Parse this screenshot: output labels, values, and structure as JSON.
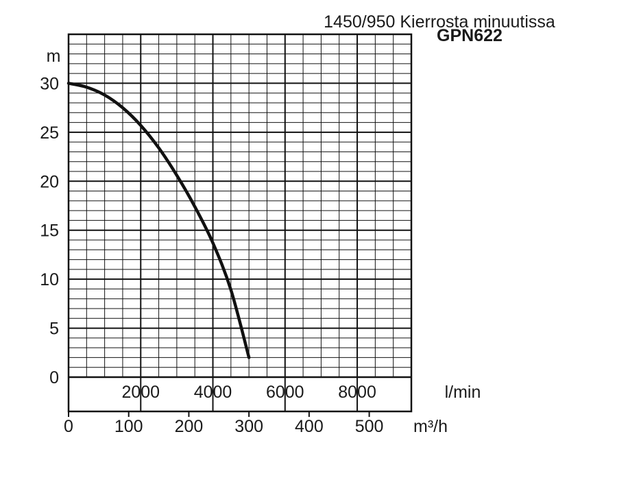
{
  "chart_data": {
    "type": "line",
    "title": "1450/950 Kierrosta minuutissa",
    "subtitle": "GPN622",
    "ylabel": "m",
    "xlabel": "l/min",
    "x2label": "m³/h",
    "ylim": [
      0,
      35
    ],
    "xlim": [
      0,
      9500
    ],
    "y_ticks": [
      "0",
      "5",
      "10",
      "15",
      "20",
      "25",
      "30"
    ],
    "x_ticks": [
      "2000",
      "4000",
      "6000",
      "8000"
    ],
    "x2_ticks": [
      "0",
      "100",
      "200",
      "300",
      "400",
      "500"
    ],
    "grid": true,
    "series": [
      {
        "x": [
          0,
          500,
          1000,
          1500,
          2000,
          2500,
          3000,
          3500,
          4000,
          4500,
          5000
        ],
        "y": [
          30,
          29.6,
          28.8,
          27.5,
          25.7,
          23.4,
          20.6,
          17.4,
          13.7,
          8.9,
          2
        ]
      }
    ]
  }
}
